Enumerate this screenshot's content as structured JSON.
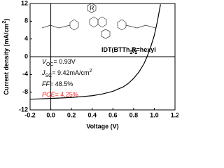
{
  "chart_data": {
    "type": "line",
    "x_label": "Voltage (V)",
    "y_label": [
      {
        "text": "Current density (mA/cm"
      },
      {
        "text": "2",
        "style": "sup"
      },
      {
        "text": ")"
      }
    ],
    "x": [
      -0.2,
      0,
      0.2,
      0.4,
      0.5,
      0.6,
      0.7,
      0.75,
      0.8,
      0.85,
      0.9,
      0.93,
      0.96,
      1.0,
      1.03,
      1.06
    ],
    "series": [
      {
        "color": "#000000",
        "values": [
          -9.6,
          -9.42,
          -9.2,
          -8.8,
          -8.4,
          -7.8,
          -6.8,
          -6.0,
          -4.9,
          -3.5,
          -1.6,
          0,
          1.8,
          4.8,
          8,
          11.8
        ]
      }
    ],
    "xlim": [
      -0.2,
      1.2
    ],
    "xticks": [
      -0.2,
      {
        "value": 0,
        "label": "0.0"
      },
      0.2,
      0.4,
      0.6,
      0.8,
      {
        "value": 1,
        "label": "1.0"
      },
      1.2
    ],
    "ylim": [
      -12,
      12
    ],
    "yticks": [
      -12,
      -8,
      -4,
      0,
      4,
      8,
      12
    ],
    "annotations": [
      {
        "color": "#000000",
        "segments": [
          {
            "text": "IDT(BTTh"
          },
          {
            "text": "2",
            "style": "sub"
          },
          {
            "text": ")"
          },
          {
            "text": "2",
            "style": "sub"
          }
        ]
      },
      {
        "color": "#000000",
        "segments": [
          {
            "text": "R=hexyl"
          }
        ]
      },
      {
        "color": "#000000",
        "segments": [
          {
            "text": "V",
            "style": "italic"
          },
          {
            "text": "OC",
            "style": "sub"
          },
          {
            "text": "= 0.93V"
          }
        ]
      },
      {
        "color": "#000000",
        "segments": [
          {
            "text": "J",
            "style": "italic"
          },
          {
            "text": "SC",
            "style": "sub"
          },
          {
            "text": "= 9.42mA/cm"
          },
          {
            "text": "2",
            "style": "sup"
          }
        ]
      },
      {
        "color": "#000000",
        "segments": [
          {
            "text": "FF",
            "style": "italic"
          },
          {
            "text": "= 48.5%"
          }
        ]
      },
      {
        "color": "#ff2020",
        "segments": [
          {
            "text": "PCE",
            "style": "italic"
          },
          {
            "text": "= 4.25%"
          }
        ]
      }
    ]
  }
}
